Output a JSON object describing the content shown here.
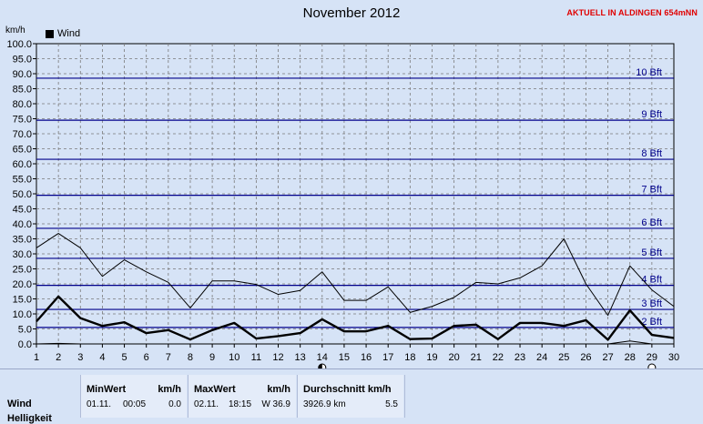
{
  "title": "November 2012",
  "station": "AKTUELL IN ALDINGEN 654mNN",
  "unit_label": "km/h",
  "legend": {
    "label": "Wind"
  },
  "chart_data": {
    "type": "line",
    "title": "November 2012",
    "ylabel": "km/h",
    "xlabel": "",
    "ylim": [
      0,
      100
    ],
    "xlim": [
      1,
      30
    ],
    "grid": true,
    "x": [
      1,
      2,
      3,
      4,
      5,
      6,
      7,
      8,
      9,
      10,
      11,
      12,
      13,
      14,
      15,
      16,
      17,
      18,
      19,
      20,
      21,
      22,
      23,
      24,
      25,
      26,
      27,
      28,
      29,
      30
    ],
    "y_ticks": [
      "0.0",
      "5.0",
      "10.0",
      "15.0",
      "20.0",
      "25.0",
      "30.0",
      "35.0",
      "40.0",
      "45.0",
      "50.0",
      "55.0",
      "60.0",
      "65.0",
      "70.0",
      "75.0",
      "80.0",
      "85.0",
      "90.0",
      "95.0",
      "100.0"
    ],
    "series": [
      {
        "name": "Wind",
        "style": "thick",
        "color": "#000000",
        "values": [
          7.5,
          15.8,
          8.6,
          6.0,
          7.2,
          3.6,
          4.6,
          1.5,
          4.6,
          7.0,
          1.8,
          2.6,
          3.6,
          8.2,
          4.2,
          4.2,
          6.0,
          1.6,
          1.8,
          6.0,
          6.4,
          1.6,
          7.0,
          7.0,
          6.0,
          7.9,
          1.4,
          11.2,
          3.0,
          2.0
        ]
      },
      {
        "style": "thin",
        "color": "#000000",
        "values": [
          32.0,
          36.8,
          32.0,
          22.5,
          28.0,
          24.0,
          20.5,
          12.0,
          21.0,
          21.0,
          19.8,
          16.5,
          17.8,
          24.0,
          14.5,
          14.5,
          19.0,
          10.5,
          12.5,
          15.5,
          20.5,
          20.0,
          22.0,
          26.0,
          35.0,
          20.0,
          9.5,
          26.0,
          18.0,
          12.5
        ]
      },
      {
        "style": "thin",
        "color": "#000000",
        "values": [
          0.0,
          0.2,
          0.0,
          0.0,
          0.0,
          0.0,
          0.0,
          0.0,
          0.0,
          0.0,
          0.0,
          0.0,
          0.0,
          0.0,
          0.0,
          0.0,
          0.0,
          0.0,
          0.0,
          0.0,
          0.0,
          0.0,
          0.0,
          0.0,
          0.0,
          0.0,
          0.0,
          1.0,
          0.0,
          0.0
        ]
      }
    ],
    "beaufort": [
      {
        "label": "2 Bft",
        "kmh": 5.5
      },
      {
        "label": "3 Bft",
        "kmh": 11.5
      },
      {
        "label": "4 Bft",
        "kmh": 19.5
      },
      {
        "label": "5 Bft",
        "kmh": 28.5
      },
      {
        "label": "6 Bft",
        "kmh": 38.5
      },
      {
        "label": "7 Bft",
        "kmh": 49.5
      },
      {
        "label": "8 Bft",
        "kmh": 61.5
      },
      {
        "label": "9 Bft",
        "kmh": 74.5
      },
      {
        "label": "10 Bft",
        "kmh": 88.5
      }
    ],
    "moon_markers": [
      {
        "day": 14,
        "phase": "new-moon"
      },
      {
        "day": 29,
        "phase": "full-moon"
      }
    ],
    "colors": {
      "background": "#d6e3f6",
      "plot": "#d6e3f6",
      "grid": "#7a7a7a",
      "beaufort": "#00008b",
      "beaufort_label": "#00008b"
    }
  },
  "stats": {
    "row_label": "Wind",
    "row_label_2": "Helligkeit",
    "min": {
      "header": "MinWert",
      "unit": "km/h",
      "date": "01.11.",
      "time": "00:05",
      "value": "0.0"
    },
    "max": {
      "header": "MaxWert",
      "unit": "km/h",
      "date": "02.11.",
      "time": "18:15",
      "value": "W 36.9"
    },
    "avg": {
      "header": "Durchschnitt km/h",
      "distance": "3926.9 km",
      "value": "5.5"
    }
  }
}
